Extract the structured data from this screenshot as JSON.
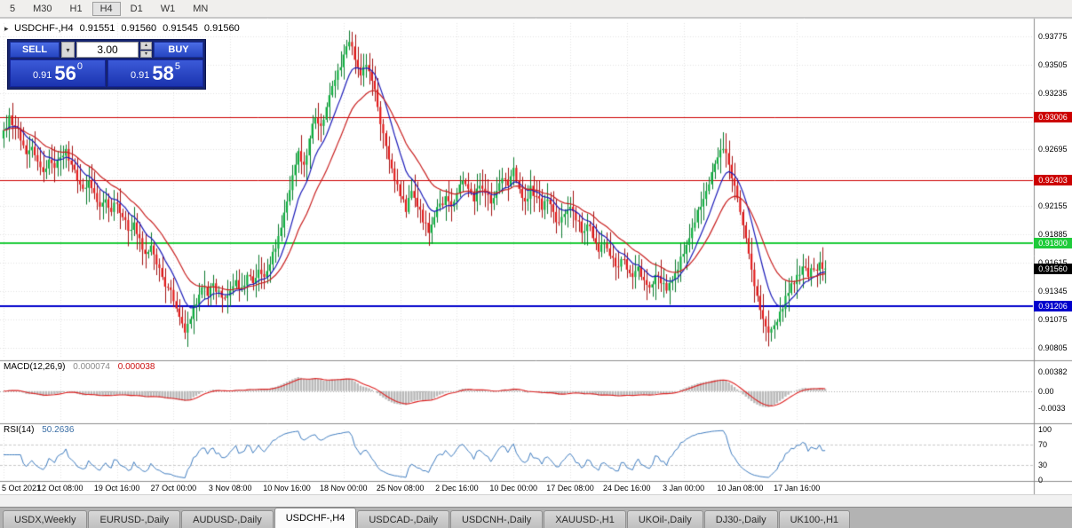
{
  "toolbar": {
    "periods": [
      {
        "label": "5"
      },
      {
        "label": "M30"
      },
      {
        "label": "H1"
      },
      {
        "label": "H4",
        "active": true
      },
      {
        "label": "D1"
      },
      {
        "label": "W1"
      },
      {
        "label": "MN"
      }
    ]
  },
  "icons": {
    "panel_collapse": "▸",
    "lot_dropdown": "▾",
    "spinner_up": "▴",
    "spinner_down": "▾"
  },
  "chart_header": {
    "symbol_period": "USDCHF-,H4",
    "open": "0.91551",
    "high": "0.91560",
    "low": "0.91545",
    "close": "0.91560"
  },
  "trade_panel": {
    "sell_label": "SELL",
    "buy_label": "BUY",
    "lot": "3.00",
    "sell_price": {
      "prefix": "0.91",
      "big": "56",
      "sup": "0"
    },
    "buy_price": {
      "prefix": "0.91",
      "big": "58",
      "sup": "5"
    }
  },
  "price_axis": {
    "ticks": [
      "0.93775",
      "0.93505",
      "0.93235",
      "0.92695",
      "0.92155",
      "0.91885",
      "0.91615",
      "0.91345",
      "0.91075",
      "0.90805"
    ],
    "grid_top": 0.93775,
    "grid_step": 0.0027,
    "grid_count": 12
  },
  "levels": [
    {
      "label": "0.93006",
      "price": 0.93006,
      "color": "#cc0000",
      "width": 1
    },
    {
      "label": "0.92403",
      "price": 0.92403,
      "color": "#cc0000",
      "width": 1
    },
    {
      "label": "0.91800",
      "price": 0.918,
      "color": "#1ecb3a",
      "width": 2
    },
    {
      "label": "0.91206",
      "price": 0.91206,
      "color": "#0000cc",
      "width": 2
    }
  ],
  "current_price": {
    "label": "0.91560",
    "price": 0.9156,
    "color": "#000000"
  },
  "macd_panel": {
    "name": "MACD(12,26,9)",
    "value_main": "0.000074",
    "value_signal": "0.000038",
    "ticks": [
      "0.00382",
      "0.00",
      "-0.0033"
    ]
  },
  "rsi_panel": {
    "name": "RSI(14)",
    "value": "50.2636",
    "ticks": [
      "100",
      "70",
      "30",
      "0"
    ]
  },
  "time_axis": {
    "labels": [
      "5 Oct 2021",
      "12 Oct 08:00",
      "19 Oct 16:00",
      "27 Oct 00:00",
      "3 Nov 08:00",
      "10 Nov 16:00",
      "18 Nov 00:00",
      "25 Nov 08:00",
      "2 Dec 16:00",
      "10 Dec 00:00",
      "17 Dec 08:00",
      "24 Dec 16:00",
      "3 Jan 00:00",
      "10 Jan 08:00",
      "17 Jan 16:00"
    ]
  },
  "tabs": {
    "items": [
      {
        "label": "USDX,Weekly"
      },
      {
        "label": "EURUSD-,Daily"
      },
      {
        "label": "AUDUSD-,Daily"
      },
      {
        "label": "USDCHF-,H4",
        "active": true
      },
      {
        "label": "USDCAD-,Daily"
      },
      {
        "label": "USDCNH-,Daily"
      },
      {
        "label": "XAUUSD-,H1"
      },
      {
        "label": "UKOil-,Daily"
      },
      {
        "label": "DJ30-,Daily"
      },
      {
        "label": "UK100-,H1"
      }
    ]
  },
  "chart_data": {
    "type": "candlestick",
    "symbol": "USDCHF-",
    "timeframe": "H4",
    "title": "USDCHF-,H4",
    "price_range": {
      "min": 0.9072,
      "max": 0.939
    },
    "x_labels": [
      "5 Oct 2021",
      "12 Oct 08:00",
      "19 Oct 16:00",
      "27 Oct 00:00",
      "3 Nov 08:00",
      "10 Nov 16:00",
      "18 Nov 00:00",
      "25 Nov 08:00",
      "2 Dec 16:00",
      "10 Dec 00:00",
      "17 Dec 08:00",
      "24 Dec 16:00",
      "3 Jan 00:00",
      "10 Jan 08:00",
      "17 Jan 16:00"
    ],
    "open_first": 0.928,
    "closes": [
      0.9288,
      0.9302,
      0.9292,
      0.9278,
      0.9265,
      0.9272,
      0.9258,
      0.9248,
      0.926,
      0.9252,
      0.9262,
      0.927,
      0.9255,
      0.924,
      0.9232,
      0.924,
      0.9228,
      0.9215,
      0.9222,
      0.921,
      0.9218,
      0.9205,
      0.9192,
      0.92,
      0.9185,
      0.917,
      0.9178,
      0.916,
      0.9148,
      0.9138,
      0.9125,
      0.911,
      0.9095,
      0.9108,
      0.9122,
      0.9138,
      0.913,
      0.9142,
      0.9135,
      0.9128,
      0.9135,
      0.9145,
      0.9138,
      0.915,
      0.9142,
      0.9155,
      0.9148,
      0.916,
      0.9175,
      0.9195,
      0.922,
      0.9245,
      0.9268,
      0.9255,
      0.928,
      0.93,
      0.9292,
      0.931,
      0.933,
      0.9345,
      0.936,
      0.9372,
      0.9355,
      0.934,
      0.935,
      0.9335,
      0.931,
      0.9285,
      0.926,
      0.924,
      0.9225,
      0.921,
      0.923,
      0.9215,
      0.92,
      0.919,
      0.9205,
      0.9218,
      0.9225,
      0.9215,
      0.9228,
      0.924,
      0.9232,
      0.922,
      0.9235,
      0.9228,
      0.9218,
      0.923,
      0.9242,
      0.9235,
      0.9252,
      0.9232,
      0.922,
      0.9235,
      0.9225,
      0.9212,
      0.9222,
      0.921,
      0.92,
      0.9208,
      0.9215,
      0.9202,
      0.919,
      0.9198,
      0.9185,
      0.9172,
      0.918,
      0.9168,
      0.9158,
      0.9165,
      0.9155,
      0.9148,
      0.9158,
      0.9145,
      0.9138,
      0.915,
      0.9142,
      0.9135,
      0.9145,
      0.9155,
      0.917,
      0.9185,
      0.92,
      0.9215,
      0.923,
      0.9248,
      0.9262,
      0.927,
      0.9255,
      0.9235,
      0.921,
      0.9185,
      0.9155,
      0.913,
      0.9108,
      0.9095,
      0.9102,
      0.9115,
      0.913,
      0.9142,
      0.915,
      0.9158,
      0.9148,
      0.9155,
      0.9162,
      0.9156
    ],
    "levels": [
      0.93006,
      0.92403,
      0.918,
      0.91206
    ],
    "last_price": 0.9156,
    "colors": {
      "up": "#0faf3f",
      "up_border": "#0a7a2c",
      "down": "#e31b1b",
      "down_border": "#a31111",
      "ma_fast": "#1a1ab8",
      "ma_slow": "#c81e1e",
      "macd_hist": "#b8b8b8",
      "macd_signal": "#dd2020",
      "rsi_line": "#3f7cbf"
    },
    "indicators": {
      "macd": {
        "params": "12,26,9",
        "last_main": 7.4e-05,
        "last_signal": 3.8e-05,
        "axis_ticks": [
          0.00382,
          0,
          -0.0033
        ],
        "render_range": [
          -0.0056,
          0.005
        ]
      },
      "rsi": {
        "params": "14",
        "last": 50.2636,
        "axis_ticks": [
          100,
          70,
          30,
          0
        ],
        "levels": [
          70,
          30
        ],
        "render_range": [
          0,
          100
        ]
      }
    }
  }
}
